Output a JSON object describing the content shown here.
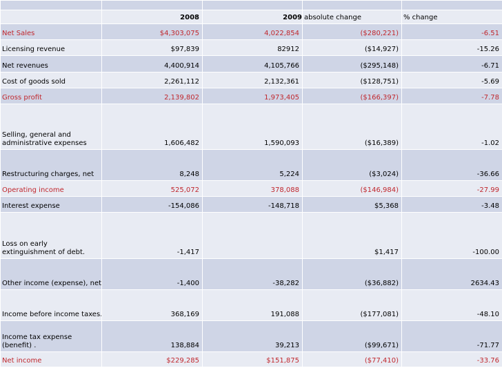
{
  "header": {
    "year_2008": "2008",
    "year_2009": "2009",
    "absolute_change": "absolute change",
    "percent_change": "% change"
  },
  "rows": [
    {
      "label": "Net Sales",
      "v2008": "$4,303,075",
      "v2009": "4,022,854",
      "abs": "($280,221)",
      "pct": "-6.51"
    },
    {
      "label": "Licensing revenue",
      "v2008": "$97,839",
      "v2009": "82912",
      "abs": "($14,927)",
      "pct": "-15.26"
    },
    {
      "label": "Net revenues",
      "v2008": "4,400,914",
      "v2009": "4,105,766",
      "abs": "($295,148)",
      "pct": "-6.71"
    },
    {
      "label": "Cost of goods sold",
      "v2008": "2,261,112",
      "v2009": "2,132,361",
      "abs": "($128,751)",
      "pct": "-5.69"
    },
    {
      "label": "Gross profit",
      "v2008": "2,139,802",
      "v2009": "1,973,405",
      "abs": "($166,397)",
      "pct": "-7.78"
    },
    {
      "label": "Selling, general and administrative expenses",
      "v2008": "1,606,482",
      "v2009": "1,590,093",
      "abs": "($16,389)",
      "pct": "-1.02"
    },
    {
      "label": "Restructuring charges, net",
      "v2008": "8,248",
      "v2009": "5,224",
      "abs": "($3,024)",
      "pct": "-36.66"
    },
    {
      "label": "Operating income",
      "v2008": "525,072",
      "v2009": "378,088",
      "abs": "($146,984)",
      "pct": "-27.99"
    },
    {
      "label": "Interest expense",
      "v2008": "-154,086",
      "v2009": "-148,718",
      "abs": "$5,368",
      "pct": "-3.48"
    },
    {
      "label": "Loss on early extinguishment of debt.",
      "v2008": "-1,417",
      "v2009": "",
      "abs": "$1,417",
      "pct": "-100.00"
    },
    {
      "label": "Other income (expense), net",
      "v2008": "-1,400",
      "v2009": "-38,282",
      "abs": "($36,882)",
      "pct": "2634.43"
    },
    {
      "label": "Income before income taxes.",
      "v2008": "368,169",
      "v2009": "191,088",
      "abs": "($177,081)",
      "pct": "-48.10"
    },
    {
      "label": "Income tax expense (benefit) .",
      "v2008": "138,884",
      "v2009": "39,213",
      "abs": "($99,671)",
      "pct": "-71.77"
    },
    {
      "label": "Net income",
      "v2008": "$229,285",
      "v2009": "$151,875",
      "abs": "($77,410)",
      "pct": "-33.76"
    }
  ],
  "colors": {
    "highlight_text": "#c0272d",
    "band_dark": "#cfd5e6",
    "band_light": "#e8ebf3"
  }
}
